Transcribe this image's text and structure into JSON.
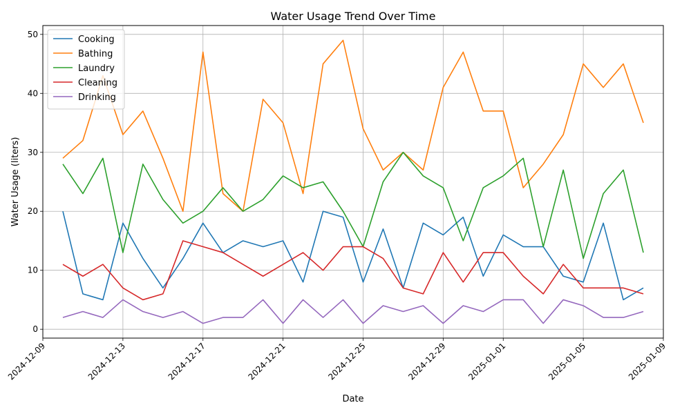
{
  "chart_data": {
    "type": "line",
    "title": "Water Usage Trend Over Time",
    "xlabel": "Date",
    "ylabel": "Water Usage (liters)",
    "x": [
      "2024-12-10",
      "2024-12-11",
      "2024-12-12",
      "2024-12-13",
      "2024-12-14",
      "2024-12-15",
      "2024-12-16",
      "2024-12-17",
      "2024-12-18",
      "2024-12-19",
      "2024-12-20",
      "2024-12-21",
      "2024-12-22",
      "2024-12-23",
      "2024-12-24",
      "2024-12-25",
      "2024-12-26",
      "2024-12-27",
      "2024-12-28",
      "2024-12-29",
      "2024-12-30",
      "2024-12-31",
      "2025-01-01",
      "2025-01-02",
      "2025-01-03",
      "2025-01-04",
      "2025-01-05",
      "2025-01-06",
      "2025-01-07",
      "2025-01-08"
    ],
    "xticks": [
      "2024-12-09",
      "2024-12-13",
      "2024-12-17",
      "2024-12-21",
      "2024-12-25",
      "2024-12-29",
      "2025-01-01",
      "2025-01-05",
      "2025-01-09"
    ],
    "xlim": [
      "2024-12-09",
      "2025-01-09"
    ],
    "yticks": [
      0,
      10,
      20,
      30,
      40,
      50
    ],
    "ylim": [
      -1.5,
      51.5
    ],
    "grid": true,
    "legend_position": "top-left",
    "series": [
      {
        "name": "Cooking",
        "color": "#1f77b4",
        "values": [
          20,
          6,
          5,
          18,
          12,
          7,
          12,
          18,
          13,
          15,
          14,
          15,
          8,
          20,
          19,
          8,
          17,
          7,
          18,
          16,
          19,
          9,
          16,
          14,
          14,
          9,
          8,
          18,
          5,
          7
        ]
      },
      {
        "name": "Bathing",
        "color": "#ff7f0e",
        "values": [
          29,
          32,
          43,
          33,
          37,
          29,
          20,
          47,
          23,
          20,
          39,
          35,
          23,
          45,
          49,
          34,
          27,
          30,
          27,
          41,
          47,
          37,
          37,
          24,
          28,
          33,
          45,
          41,
          45,
          35
        ]
      },
      {
        "name": "Laundry",
        "color": "#2ca02c",
        "values": [
          28,
          23,
          29,
          13,
          28,
          22,
          18,
          20,
          24,
          20,
          22,
          26,
          24,
          25,
          20,
          14,
          25,
          30,
          26,
          24,
          15,
          24,
          26,
          29,
          14,
          27,
          12,
          23,
          27,
          13
        ]
      },
      {
        "name": "Cleaning",
        "color": "#d62728",
        "values": [
          11,
          9,
          11,
          7,
          5,
          6,
          15,
          14,
          13,
          11,
          9,
          11,
          13,
          10,
          14,
          14,
          12,
          7,
          6,
          13,
          8,
          13,
          13,
          9,
          6,
          11,
          7,
          7,
          7,
          6
        ]
      },
      {
        "name": "Drinking",
        "color": "#9467bd",
        "values": [
          2,
          3,
          2,
          5,
          3,
          2,
          3,
          1,
          2,
          2,
          5,
          1,
          5,
          2,
          5,
          1,
          4,
          3,
          4,
          1,
          4,
          3,
          5,
          5,
          1,
          5,
          4,
          2,
          2,
          3
        ]
      }
    ]
  }
}
